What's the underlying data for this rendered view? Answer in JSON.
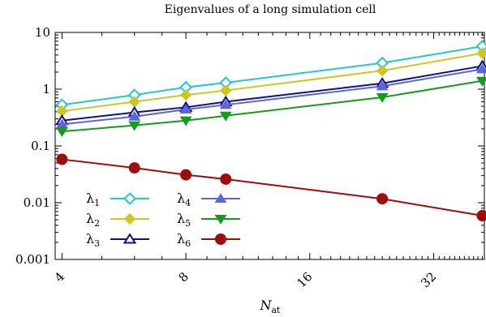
{
  "chart_data": {
    "type": "line",
    "title": "Eigenvalues of a long simulation cell",
    "xlabel": "N",
    "xlabel_sub": "at",
    "ylabel": "",
    "xscale": "log2",
    "yscale": "log10",
    "xlim": [
      3.85,
      42.5
    ],
    "ylim": [
      0.001,
      10
    ],
    "xticks": [
      4,
      8,
      16,
      32
    ],
    "xtick_labels": [
      "4",
      "8",
      "16",
      "32"
    ],
    "yticks": [
      0.001,
      0.01,
      0.1,
      1,
      10
    ],
    "ytick_labels": [
      "0.001",
      "0.01",
      "0.1",
      "1",
      "10"
    ],
    "grid": false,
    "legend_position": "bottom-left",
    "x": [
      4,
      6,
      8,
      10,
      24,
      42
    ],
    "series": [
      {
        "name": "λ",
        "sub": "1",
        "color": "#22c8cc",
        "marker": "diamond-open",
        "values": [
          0.53,
          0.79,
          1.08,
          1.3,
          2.9,
          5.7
        ]
      },
      {
        "name": "λ",
        "sub": "2",
        "color": "#d0c622",
        "marker": "diamond-filled",
        "values": [
          0.41,
          0.6,
          0.79,
          0.95,
          2.12,
          4.3
        ]
      },
      {
        "name": "λ",
        "sub": "3",
        "color": "#0c108c",
        "marker": "triangle-open",
        "values": [
          0.28,
          0.39,
          0.48,
          0.6,
          1.27,
          2.56
        ]
      },
      {
        "name": "λ",
        "sub": "4",
        "color": "#5c66d8",
        "marker": "triangle-filled",
        "values": [
          0.24,
          0.33,
          0.44,
          0.53,
          1.13,
          2.25
        ]
      },
      {
        "name": "λ",
        "sub": "5",
        "color": "#129c1c",
        "marker": "triangle-down-filled",
        "values": [
          0.18,
          0.23,
          0.28,
          0.34,
          0.72,
          1.4
        ]
      },
      {
        "name": "λ",
        "sub": "6",
        "color": "#a00c0c",
        "marker": "circle-filled",
        "values": [
          0.058,
          0.041,
          0.031,
          0.026,
          0.0117,
          0.0059
        ]
      }
    ]
  }
}
